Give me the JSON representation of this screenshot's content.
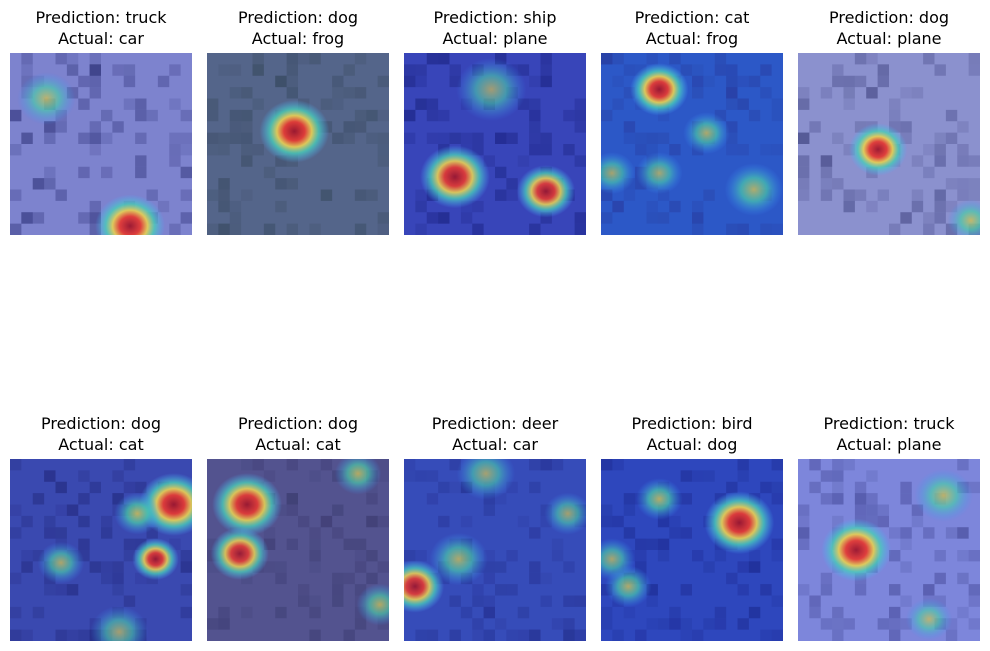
{
  "panels": [
    {
      "prediction": "Prediction: truck",
      "actual": "Actual: car",
      "base": "#8a8cc8",
      "tone": "#3a3a70",
      "hot": [
        {
          "cx": 66,
          "cy": 95,
          "r": 6,
          "s": 1.0
        },
        {
          "cx": 20,
          "cy": 25,
          "r": 5,
          "s": 0.6
        }
      ]
    },
    {
      "prediction": "Prediction: dog",
      "actual": "Actual: frog",
      "base": "#5c6a7a",
      "tone": "#3a4a48",
      "hot": [
        {
          "cx": 48,
          "cy": 43,
          "r": 6,
          "s": 1.0
        }
      ]
    },
    {
      "prediction": "Prediction: ship",
      "actual": "Actual: plane",
      "base": "#3c46b0",
      "tone": "#1a1f70",
      "hot": [
        {
          "cx": 28,
          "cy": 68,
          "r": 6,
          "s": 0.95
        },
        {
          "cx": 78,
          "cy": 76,
          "r": 5,
          "s": 0.9
        },
        {
          "cx": 48,
          "cy": 20,
          "r": 6,
          "s": 0.4
        }
      ]
    },
    {
      "prediction": "Prediction: cat",
      "actual": "Actual: frog",
      "base": "#2e5cc0",
      "tone": "#2a3a90",
      "hot": [
        {
          "cx": 32,
          "cy": 20,
          "r": 5,
          "s": 1.0
        },
        {
          "cx": 58,
          "cy": 44,
          "r": 4,
          "s": 0.6
        },
        {
          "cx": 84,
          "cy": 75,
          "r": 5,
          "s": 0.65
        },
        {
          "cx": 32,
          "cy": 66,
          "r": 4,
          "s": 0.5
        },
        {
          "cx": 6,
          "cy": 66,
          "r": 4,
          "s": 0.5
        }
      ]
    },
    {
      "prediction": "Prediction: dog",
      "actual": "Actual: plane",
      "base": "#9a9cc8",
      "tone": "#50507a",
      "hot": [
        {
          "cx": 44,
          "cy": 53,
          "r": 5,
          "s": 1.0
        },
        {
          "cx": 95,
          "cy": 92,
          "r": 4,
          "s": 0.7
        }
      ]
    },
    {
      "prediction": "Prediction: dog",
      "actual": "Actual: cat",
      "base": "#3e4aa6",
      "tone": "#23266a",
      "hot": [
        {
          "cx": 90,
          "cy": 25,
          "r": 6,
          "s": 1.0
        },
        {
          "cx": 80,
          "cy": 55,
          "r": 4,
          "s": 0.9
        },
        {
          "cx": 70,
          "cy": 30,
          "r": 4,
          "s": 0.8
        },
        {
          "cx": 28,
          "cy": 57,
          "r": 4,
          "s": 0.55
        },
        {
          "cx": 60,
          "cy": 95,
          "r": 5,
          "s": 0.4
        }
      ]
    },
    {
      "prediction": "Prediction: dog",
      "actual": "Actual: cat",
      "base": "#5a5680",
      "tone": "#403a5c",
      "hot": [
        {
          "cx": 22,
          "cy": 25,
          "r": 6,
          "s": 0.95
        },
        {
          "cx": 18,
          "cy": 52,
          "r": 5,
          "s": 0.85
        },
        {
          "cx": 83,
          "cy": 8,
          "r": 4,
          "s": 0.6
        },
        {
          "cx": 95,
          "cy": 80,
          "r": 4,
          "s": 0.55
        }
      ]
    },
    {
      "prediction": "Prediction: deer",
      "actual": "Actual: car",
      "base": "#3a4eb0",
      "tone": "#262e80",
      "hot": [
        {
          "cx": 6,
          "cy": 70,
          "r": 5,
          "s": 0.9
        },
        {
          "cx": 30,
          "cy": 55,
          "r": 5,
          "s": 0.6
        },
        {
          "cx": 45,
          "cy": 8,
          "r": 5,
          "s": 0.45
        },
        {
          "cx": 90,
          "cy": 30,
          "r": 4,
          "s": 0.45
        }
      ]
    },
    {
      "prediction": "Prediction: bird",
      "actual": "Actual: dog",
      "base": "#3048b4",
      "tone": "#1c2680",
      "hot": [
        {
          "cx": 76,
          "cy": 35,
          "r": 6,
          "s": 1.0
        },
        {
          "cx": 32,
          "cy": 22,
          "r": 4,
          "s": 0.7
        },
        {
          "cx": 15,
          "cy": 70,
          "r": 4,
          "s": 0.65
        },
        {
          "cx": 6,
          "cy": 55,
          "r": 4,
          "s": 0.55
        }
      ]
    },
    {
      "prediction": "Prediction: truck",
      "actual": "Actual: plane",
      "base": "#8a90d6",
      "tone": "#4a4a8a",
      "hot": [
        {
          "cx": 32,
          "cy": 50,
          "r": 6,
          "s": 1.0
        },
        {
          "cx": 80,
          "cy": 20,
          "r": 5,
          "s": 0.65
        },
        {
          "cx": 72,
          "cy": 88,
          "r": 4,
          "s": 0.5
        }
      ]
    }
  ]
}
